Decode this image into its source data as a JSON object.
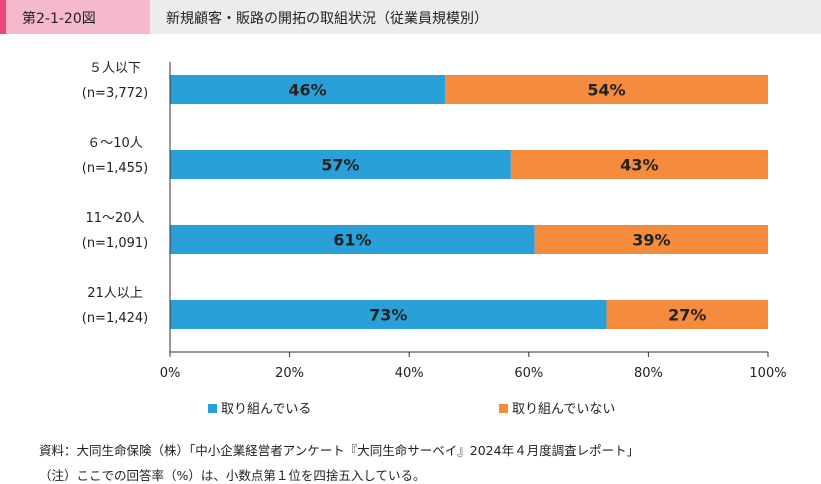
{
  "header": {
    "figure_number": "第2-1-20図",
    "title": "新規顧客・販路の開拓の取組状況（従業員規模別）"
  },
  "chart_data": {
    "type": "bar",
    "orientation": "horizontal",
    "stacked": true,
    "categories": [
      {
        "label": "５人以下",
        "n": "(n=3,772)"
      },
      {
        "label": "６～10人",
        "n": "(n=1,455)"
      },
      {
        "label": "11～20人",
        "n": "(n=1,091)"
      },
      {
        "label": "21人以上",
        "n": "(n=1,424)"
      }
    ],
    "series": [
      {
        "name": "取り組んでいる",
        "color": "#2aa0d8",
        "values": [
          46,
          57,
          61,
          73
        ],
        "labels": [
          "46%",
          "57%",
          "61%",
          "73%"
        ]
      },
      {
        "name": "取り組んでいない",
        "color": "#f58b3c",
        "values": [
          54,
          43,
          39,
          27
        ],
        "labels": [
          "54%",
          "43%",
          "39%",
          "27%"
        ]
      }
    ],
    "xlim": [
      0,
      100
    ],
    "x_ticks": [
      "0%",
      "20%",
      "40%",
      "60%",
      "80%",
      "100%"
    ],
    "grid": false,
    "legend_position": "bottom"
  },
  "notes": {
    "source": "資料：大同生命保険（株）「中小企業経営者アンケート『大同生命サーベイ』2024年４月度調査レポート」",
    "note": "（注）ここでの回答率（%）は、小数点第１位を四捨五入している。"
  }
}
